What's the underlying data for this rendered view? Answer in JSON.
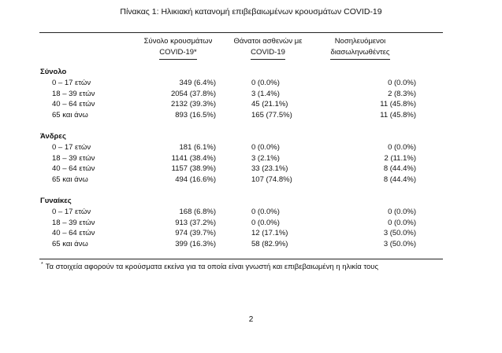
{
  "title": "Πίνακας 1: Ηλικιακή κατανομή επιβεβαιωμένων κρουσμάτων COVID-19",
  "columns": [
    {
      "line1": "Σύνολο κρουσμάτων",
      "line2": "COVID-19*"
    },
    {
      "line1": "Θάνατοι ασθενών με",
      "line2": "COVID-19"
    },
    {
      "line1": "Νοσηλευόμενοι",
      "line2": "διασωληνωθέντες"
    }
  ],
  "groups": [
    {
      "name": "Σύνολο",
      "rows": [
        {
          "age": "0 – 17 ετών",
          "cases": "349 (6.4%)",
          "deaths": "0 (0.0%)",
          "intubated": "0 (0.0%)"
        },
        {
          "age": "18 – 39 ετών",
          "cases": "2054 (37.8%)",
          "deaths": "3 (1.4%)",
          "intubated": "2 (8.3%)"
        },
        {
          "age": "40 – 64 ετών",
          "cases": "2132 (39.3%)",
          "deaths": "45 (21.1%)",
          "intubated": "11 (45.8%)"
        },
        {
          "age": "65 και άνω",
          "cases": "893 (16.5%)",
          "deaths": "165 (77.5%)",
          "intubated": "11 (45.8%)"
        }
      ]
    },
    {
      "name": "Άνδρες",
      "rows": [
        {
          "age": "0 – 17 ετών",
          "cases": "181 (6.1%)",
          "deaths": "0 (0.0%)",
          "intubated": "0 (0.0%)"
        },
        {
          "age": "18 – 39 ετών",
          "cases": "1141 (38.4%)",
          "deaths": "3 (2.1%)",
          "intubated": "2 (11.1%)"
        },
        {
          "age": "40 – 64 ετών",
          "cases": "1157 (38.9%)",
          "deaths": "33 (23.1%)",
          "intubated": "8 (44.4%)"
        },
        {
          "age": "65 και άνω",
          "cases": "494 (16.6%)",
          "deaths": "107 (74.8%)",
          "intubated": "8 (44.4%)"
        }
      ]
    },
    {
      "name": "Γυναίκες",
      "rows": [
        {
          "age": "0 – 17 ετών",
          "cases": "168 (6.8%)",
          "deaths": "0 (0.0%)",
          "intubated": "0 (0.0%)"
        },
        {
          "age": "18 – 39 ετών",
          "cases": "913 (37.2%)",
          "deaths": "0 (0.0%)",
          "intubated": "0 (0.0%)"
        },
        {
          "age": "40 – 64 ετών",
          "cases": "974 (39.7%)",
          "deaths": "12 (17.1%)",
          "intubated": "3 (50.0%)"
        },
        {
          "age": "65 και άνω",
          "cases": "399 (16.3%)",
          "deaths": "58 (82.9%)",
          "intubated": "3 (50.0%)"
        }
      ]
    }
  ],
  "footnote": {
    "marker": "*",
    "text": "Τα στοιχεία αφορούν τα κρούσματα εκείνα για τα οποία είναι γνωστή και επιβεβαιωμένη η ηλικία τους"
  },
  "page_number": "2"
}
